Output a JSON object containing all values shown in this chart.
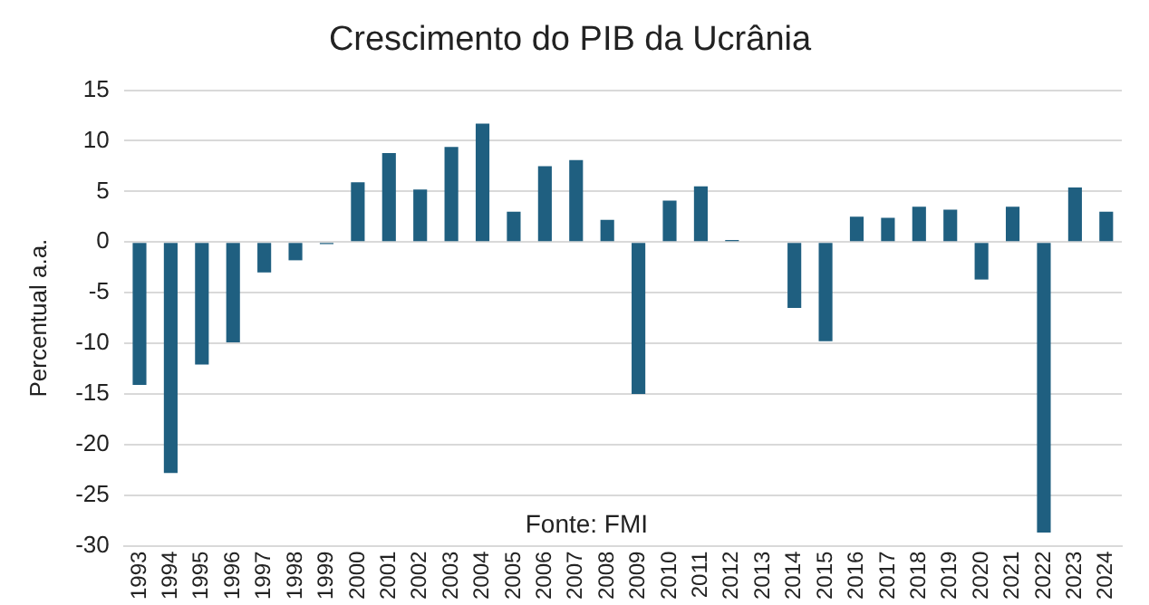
{
  "chart_data": {
    "type": "bar",
    "title": "Crescimento do PIB da Ucrânia",
    "ylabel": "Percentual a.a.",
    "categories": [
      "1993",
      "1994",
      "1995",
      "1996",
      "1997",
      "1998",
      "1999",
      "2000",
      "2001",
      "2002",
      "2003",
      "2004",
      "2005",
      "2006",
      "2007",
      "2008",
      "2009",
      "2010",
      "2011",
      "2012",
      "2013",
      "2014",
      "2015",
      "2016",
      "2017",
      "2018",
      "2019",
      "2020",
      "2021",
      "2022",
      "2023",
      "2024"
    ],
    "values": [
      -14.1,
      -22.8,
      -12.1,
      -9.9,
      -3.0,
      -1.8,
      -0.2,
      5.9,
      8.8,
      5.2,
      9.4,
      11.7,
      3.0,
      7.5,
      8.1,
      2.2,
      -15.0,
      4.1,
      5.5,
      0.2,
      0,
      -6.5,
      -9.8,
      2.5,
      2.4,
      3.5,
      3.2,
      -3.7,
      3.5,
      -28.7,
      5.4,
      3.0
    ],
    "color": "#1f5f80",
    "ylim": [
      -30,
      15
    ],
    "yticks": [
      -30,
      -25,
      -20,
      -15,
      -10,
      -5,
      0,
      5,
      10,
      15
    ],
    "grid": "y",
    "legend": false,
    "annotations": [
      "Fonte: FMI"
    ]
  }
}
